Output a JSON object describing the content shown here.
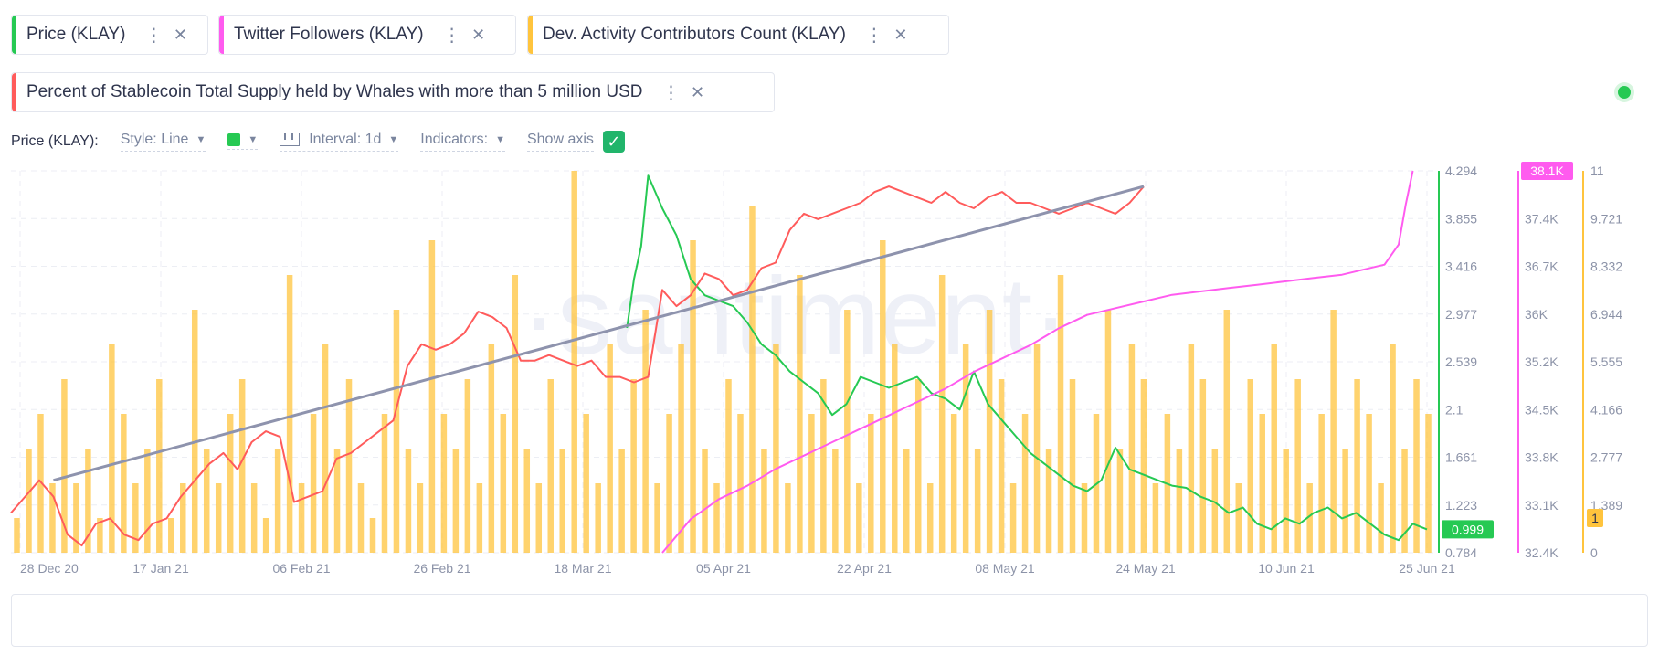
{
  "metrics": [
    {
      "label": "Price (KLAY)",
      "color": "#26c953"
    },
    {
      "label": "Twitter Followers (KLAY)",
      "color": "#ff5bef"
    },
    {
      "label": "Dev. Activity Contributors Count (KLAY)",
      "color": "#ffc43d"
    },
    {
      "label": "Percent of Stablecoin Total Supply held by Whales with more than 5 million USD",
      "color": "#ff5b5b"
    }
  ],
  "settings": {
    "metric_label": "Price (KLAY):",
    "style_label": "Style: Line",
    "interval_label": "Interval: 1d",
    "indicators_label": "Indicators:",
    "show_axis_label": "Show axis",
    "show_axis_checked": true
  },
  "watermark": "·santiment·",
  "chart_data": {
    "type": "line",
    "x_ticks": [
      "28 Dec 20",
      "17 Jan 21",
      "06 Feb 21",
      "26 Feb 21",
      "18 Mar 21",
      "05 Apr 21",
      "22 Apr 21",
      "08 May 21",
      "24 May 21",
      "10 Jun 21",
      "25 Jun 21"
    ],
    "axes": {
      "price": {
        "ticks": [
          "4.294",
          "3.855",
          "3.416",
          "2.977",
          "2.539",
          "2.1",
          "1.661",
          "1.223",
          "0.784"
        ],
        "range": [
          0.784,
          4.294
        ],
        "color": "#26c953",
        "current": "0.999"
      },
      "twitter": {
        "ticks": [
          "38.1K",
          "37.4K",
          "36.7K",
          "36K",
          "35.2K",
          "34.5K",
          "33.8K",
          "33.1K",
          "32.4K"
        ],
        "range": [
          32400,
          38100
        ],
        "color": "#ff5bef",
        "current": "38.1K"
      },
      "dev": {
        "ticks": [
          "11",
          "9.721",
          "8.332",
          "6.944",
          "5.555",
          "4.166",
          "2.777",
          "1.389",
          "0"
        ],
        "range": [
          0,
          11
        ],
        "color": "#ffc43d",
        "current": "1"
      }
    },
    "series": [
      {
        "name": "Price (KLAY)",
        "axis": "price",
        "color": "#26c953",
        "x": [
          0.435,
          0.44,
          0.445,
          0.45,
          0.455,
          0.46,
          0.47,
          0.48,
          0.49,
          0.5,
          0.51,
          0.52,
          0.53,
          0.54,
          0.55,
          0.56,
          0.57,
          0.58,
          0.59,
          0.6,
          0.61,
          0.62,
          0.63,
          0.64,
          0.65,
          0.66,
          0.67,
          0.68,
          0.69,
          0.7,
          0.71,
          0.72,
          0.73,
          0.74,
          0.75,
          0.76,
          0.77,
          0.78,
          0.79,
          0.8,
          0.81,
          0.82,
          0.83,
          0.84,
          0.85,
          0.86,
          0.87,
          0.88,
          0.89,
          0.9,
          0.91,
          0.92,
          0.93,
          0.94,
          0.95,
          0.96,
          0.97,
          0.98,
          0.99,
          1.0
        ],
        "values": [
          2.85,
          3.3,
          3.6,
          4.25,
          4.1,
          3.95,
          3.7,
          3.3,
          3.15,
          3.1,
          3.05,
          2.9,
          2.7,
          2.6,
          2.45,
          2.35,
          2.25,
          2.05,
          2.15,
          2.4,
          2.35,
          2.3,
          2.35,
          2.4,
          2.25,
          2.2,
          2.1,
          2.45,
          2.15,
          2.0,
          1.85,
          1.7,
          1.6,
          1.5,
          1.4,
          1.35,
          1.45,
          1.75,
          1.55,
          1.5,
          1.45,
          1.4,
          1.38,
          1.3,
          1.25,
          1.15,
          1.2,
          1.05,
          1.0,
          1.1,
          1.05,
          1.15,
          1.2,
          1.1,
          1.15,
          1.05,
          0.95,
          0.9,
          1.05,
          0.999
        ]
      },
      {
        "name": "Percent of Stablecoin Total Supply held by Whales with more than 5 million USD",
        "axis": "price",
        "color": "#ff5b5b",
        "x": [
          0.0,
          0.01,
          0.02,
          0.03,
          0.04,
          0.05,
          0.06,
          0.07,
          0.08,
          0.09,
          0.1,
          0.11,
          0.12,
          0.13,
          0.14,
          0.15,
          0.16,
          0.17,
          0.18,
          0.19,
          0.2,
          0.21,
          0.22,
          0.23,
          0.24,
          0.25,
          0.26,
          0.27,
          0.28,
          0.29,
          0.3,
          0.31,
          0.32,
          0.33,
          0.34,
          0.35,
          0.36,
          0.37,
          0.38,
          0.39,
          0.4,
          0.41,
          0.42,
          0.43,
          0.44,
          0.45,
          0.46,
          0.47,
          0.48,
          0.49,
          0.5,
          0.51,
          0.52,
          0.53,
          0.54,
          0.55,
          0.56,
          0.57,
          0.58,
          0.59,
          0.6,
          0.61,
          0.62,
          0.63,
          0.64,
          0.65,
          0.66,
          0.67,
          0.68,
          0.69,
          0.7,
          0.71,
          0.72,
          0.73,
          0.74,
          0.75,
          0.76,
          0.77,
          0.78,
          0.79,
          0.8
        ],
        "values": [
          1.15,
          1.3,
          1.45,
          1.3,
          0.95,
          0.85,
          1.05,
          1.1,
          0.95,
          0.9,
          1.05,
          1.1,
          1.3,
          1.45,
          1.6,
          1.7,
          1.55,
          1.8,
          1.9,
          1.85,
          1.25,
          1.3,
          1.35,
          1.65,
          1.7,
          1.8,
          1.9,
          2.0,
          2.5,
          2.7,
          2.65,
          2.7,
          2.8,
          3.0,
          2.95,
          2.85,
          2.55,
          2.55,
          2.6,
          2.55,
          2.5,
          2.55,
          2.4,
          2.4,
          2.35,
          2.4,
          3.2,
          3.05,
          3.15,
          3.35,
          3.3,
          3.15,
          3.2,
          3.4,
          3.45,
          3.75,
          3.9,
          3.85,
          3.9,
          3.95,
          4.0,
          4.1,
          4.15,
          4.1,
          4.05,
          4.0,
          4.1,
          4.0,
          3.95,
          4.05,
          4.1,
          4.0,
          4.0,
          3.95,
          3.9,
          3.95,
          4.0,
          3.95,
          3.9,
          4.0,
          4.15
        ]
      },
      {
        "name": "Twitter Followers (KLAY)",
        "axis": "twitter",
        "color": "#ff5bef",
        "x": [
          0.46,
          0.47,
          0.48,
          0.5,
          0.52,
          0.54,
          0.56,
          0.58,
          0.6,
          0.62,
          0.64,
          0.66,
          0.68,
          0.7,
          0.72,
          0.74,
          0.76,
          0.78,
          0.8,
          0.82,
          0.84,
          0.86,
          0.88,
          0.9,
          0.92,
          0.94,
          0.96,
          0.97,
          0.98,
          0.985,
          0.99
        ],
        "values": [
          32400,
          32650,
          32900,
          33200,
          33400,
          33650,
          33850,
          34050,
          34250,
          34450,
          34650,
          34850,
          35100,
          35300,
          35500,
          35750,
          35950,
          36050,
          36150,
          36250,
          36300,
          36350,
          36400,
          36450,
          36500,
          36550,
          36650,
          36700,
          37000,
          37600,
          38100
        ]
      },
      {
        "name": "Trend",
        "axis": "price",
        "color": "#8e93ad",
        "x": [
          0.03,
          0.8
        ],
        "values": [
          1.45,
          4.15
        ]
      }
    ],
    "dev_activity": {
      "axis": "dev",
      "color": "#ffc43d",
      "values": [
        1,
        3,
        4,
        2,
        5,
        2,
        3,
        1,
        6,
        4,
        2,
        3,
        5,
        1,
        2,
        7,
        3,
        2,
        4,
        5,
        2,
        1,
        3,
        8,
        2,
        4,
        6,
        3,
        5,
        2,
        1,
        4,
        7,
        3,
        2,
        9,
        4,
        3,
        5,
        2,
        6,
        4,
        8,
        3,
        2,
        5,
        3,
        11,
        4,
        2,
        6,
        3,
        5,
        7,
        2,
        4,
        6,
        9,
        3,
        2,
        5,
        4,
        10,
        3,
        6,
        2,
        8,
        4,
        5,
        3,
        7,
        2,
        4,
        9,
        6,
        3,
        5,
        2,
        8,
        4,
        6,
        3,
        7,
        5,
        2,
        4,
        6,
        3,
        8,
        5,
        2,
        4,
        7,
        3,
        6,
        5,
        2,
        4,
        3,
        6,
        5,
        3,
        7,
        2,
        5,
        4,
        6,
        3,
        5,
        2,
        4,
        7,
        3,
        5,
        4,
        2,
        6,
        3,
        5,
        4
      ]
    }
  }
}
